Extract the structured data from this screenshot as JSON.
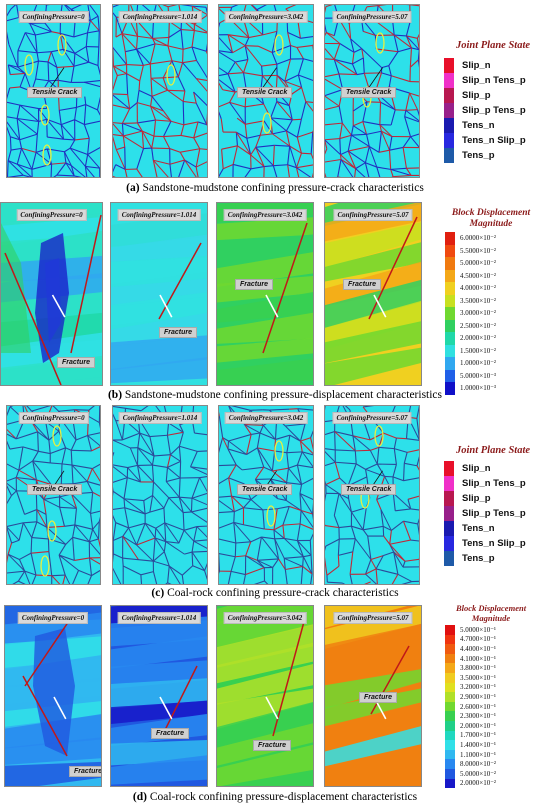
{
  "captions": {
    "a": {
      "letter": "(a)",
      "text": " Sandstone-mudstone confining pressure-crack characteristics"
    },
    "b": {
      "letter": "(b)",
      "text": " Sandstone-mudstone confining pressure-displacement characteristics"
    },
    "c": {
      "letter": "(c)",
      "text": " Coal-rock confining pressure-crack characteristics"
    },
    "d": {
      "letter": "(d)",
      "text": " Coal-rock confining pressure-displacement characteristics"
    }
  },
  "panel_labels": {
    "a": [
      "ConfiningPressure=0",
      "ConfiningPressure=1.014",
      "ConfiningPressure=3.042",
      "ConfiningPressure=5.07"
    ],
    "b": [
      "ConfiningPressure=0",
      "ConfiningPressure=1.014",
      "ConfiningPressure=3.042",
      "ConfiningPressure=5.07"
    ],
    "c": [
      "ConfiningPressure=0",
      "ConfiningPressure=1.014",
      "ConfiningPressure=3.042",
      "ConfiningPressure=5.07"
    ],
    "d": [
      "ConfiningPressure=0",
      "ConfiningPressure=1.014",
      "ConfiningPressure=3.042",
      "ConfiningPressure=5.07"
    ]
  },
  "annotations": {
    "tensile_crack": "Tensile Crack",
    "fracture": "Fracture"
  },
  "joint_legend": {
    "title": "Joint Plane State",
    "items": [
      {
        "label": "Slip_n",
        "color": "#e8102a"
      },
      {
        "label": "Slip_n Tens_p",
        "color": "#f030c8"
      },
      {
        "label": "Slip_p",
        "color": "#b81850"
      },
      {
        "label": "Slip_p Tens_p",
        "color": "#98208a"
      },
      {
        "label": "Tens_n",
        "color": "#1a1ab0"
      },
      {
        "label": "Tens_n Slip_p",
        "color": "#2828e0"
      },
      {
        "label": "Tens_p",
        "color": "#1e5aa8"
      }
    ]
  },
  "disp_legend_b": {
    "title_line1": "Block Displacement",
    "title_line2": "Magnitude",
    "items": [
      {
        "label": "6.0000×10⁻²",
        "color": "#e02010"
      },
      {
        "label": "5.5000×10⁻²",
        "color": "#f04a10"
      },
      {
        "label": "5.0000×10⁻²",
        "color": "#f07a10"
      },
      {
        "label": "4.5000×10⁻²",
        "color": "#f4a818"
      },
      {
        "label": "4.0000×10⁻²",
        "color": "#f0d020"
      },
      {
        "label": "3.5000×10⁻²",
        "color": "#c8e020"
      },
      {
        "label": "3.0000×10⁻²",
        "color": "#70d830"
      },
      {
        "label": "2.5000×10⁻²",
        "color": "#30d060"
      },
      {
        "label": "2.0000×10⁻²",
        "color": "#20d8a8"
      },
      {
        "label": "1.5000×10⁻²",
        "color": "#30e0e0"
      },
      {
        "label": "1.0000×10⁻²",
        "color": "#30a8f0"
      },
      {
        "label": "5.0000×10⁻³",
        "color": "#2060e8"
      },
      {
        "label": "1.0000×10⁻³",
        "color": "#1010c8"
      }
    ]
  },
  "disp_legend_d": {
    "title_line1": "Block Displacement",
    "title_line2": "Magnitude",
    "items": [
      {
        "label": "5.0000×10⁻¹",
        "color": "#e01010"
      },
      {
        "label": "4.7000×10⁻¹",
        "color": "#f03410"
      },
      {
        "label": "4.4000×10⁻¹",
        "color": "#f05a10"
      },
      {
        "label": "4.1000×10⁻¹",
        "color": "#f08010"
      },
      {
        "label": "3.8000×10⁻¹",
        "color": "#f4a818"
      },
      {
        "label": "3.5000×10⁻¹",
        "color": "#f0cc20"
      },
      {
        "label": "3.2000×10⁻¹",
        "color": "#e0e020"
      },
      {
        "label": "2.9000×10⁻¹",
        "color": "#b0e028"
      },
      {
        "label": "2.6000×10⁻¹",
        "color": "#70d830"
      },
      {
        "label": "2.3000×10⁻¹",
        "color": "#38d050"
      },
      {
        "label": "2.0000×10⁻¹",
        "color": "#20d088"
      },
      {
        "label": "1.7000×10⁻¹",
        "color": "#20d8c0"
      },
      {
        "label": "1.4000×10⁻¹",
        "color": "#30e0e8"
      },
      {
        "label": "1.1000×10⁻¹",
        "color": "#30b8f0"
      },
      {
        "label": "8.0000×10⁻²",
        "color": "#2888f0"
      },
      {
        "label": "5.0000×10⁻²",
        "color": "#2058e0"
      },
      {
        "label": "2.0000×10⁻²",
        "color": "#1818c8"
      }
    ]
  },
  "colors": {
    "crack_bg": "#2de0ea",
    "crack_line_blue": "#2030c0",
    "crack_line_red": "#c02838",
    "highlight_yellow": "#e8f040"
  }
}
